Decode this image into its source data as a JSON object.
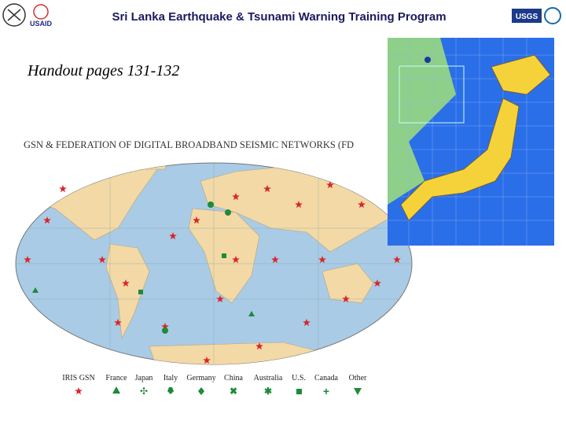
{
  "header": {
    "title": "Sri Lanka Earthquake & Tsunami Warning Training Program",
    "left_logo": "USAID",
    "right_logo": "USGS"
  },
  "handout": "Handout pages 131-132",
  "map": {
    "title": "GSN & FEDERATION OF DIGITAL BROADBAND SEISMIC NETWORKS (FD",
    "legend": [
      "IRIS GSN",
      "France",
      "Japan",
      "Italy",
      "Germany",
      "China",
      "Australia",
      "U.S.",
      "Canada",
      "Other"
    ]
  }
}
